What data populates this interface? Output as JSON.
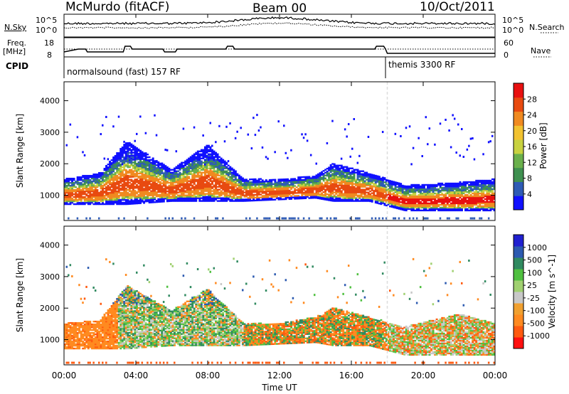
{
  "header": {
    "station": "McMurdo (fitACF)",
    "beam": "Beam 00",
    "date": "10/Oct/2011"
  },
  "top_panels": {
    "nsky_label": "N.Sky",
    "nsky_ticks": [
      "10^5",
      "10^0"
    ],
    "nsearch_label": "N.Search",
    "nsearch_ticks": [
      "10^5",
      "10^0"
    ],
    "freq_label_line1": "Freq.",
    "freq_label_line2": "[MHz]",
    "freq_ticks": [
      "18",
      "8"
    ],
    "nave_label": "Nave",
    "nave_ticks": [
      "60",
      "0"
    ],
    "cpid_label": "CPID",
    "cpid_modes": [
      {
        "name": "normalsound (fast) 157 RF",
        "start": 0
      },
      {
        "name": "themis 3300 RF",
        "start": 18
      }
    ]
  },
  "colors": {
    "power_scale": [
      "#1010ff",
      "#2e5bb5",
      "#3f9050",
      "#6ab04c",
      "#c8d240",
      "#f2c230",
      "#f08a20",
      "#e84a10",
      "#e81010"
    ],
    "velocity_scale": [
      "#ff1010",
      "#ff5a10",
      "#ff8a20",
      "#f0a030",
      "#c8c8c8",
      "#a0d070",
      "#50c040",
      "#308a60",
      "#2c5ab0",
      "#2020d0"
    ]
  },
  "chart_data": [
    {
      "type": "heatmap",
      "name": "power",
      "ylabel": "Slant Range [km]",
      "xlabel": "Time UT",
      "xlim": [
        0,
        24
      ],
      "ylim": [
        200,
        4600
      ],
      "xticks": [
        "00:00",
        "04:00",
        "08:00",
        "12:00",
        "16:00",
        "20:00",
        "00:00"
      ],
      "yticks": [
        1000,
        2000,
        3000,
        4000
      ],
      "colorbar_label": "Power [dB]",
      "colorbar_ticks": [
        4,
        8,
        12,
        16,
        20,
        24,
        28
      ],
      "colorbar_range": [
        0,
        32
      ],
      "echo_band": [
        {
          "t": 0,
          "lo": 700,
          "hi": 1500
        },
        {
          "t": 2,
          "lo": 700,
          "hi": 1700
        },
        {
          "t": 3.5,
          "lo": 700,
          "hi": 2700
        },
        {
          "t": 6,
          "lo": 800,
          "hi": 1800
        },
        {
          "t": 8,
          "lo": 800,
          "hi": 2600
        },
        {
          "t": 10,
          "lo": 800,
          "hi": 1500
        },
        {
          "t": 12,
          "lo": 850,
          "hi": 1500
        },
        {
          "t": 14,
          "lo": 900,
          "hi": 1600
        },
        {
          "t": 15,
          "lo": 800,
          "hi": 2000
        },
        {
          "t": 17,
          "lo": 800,
          "hi": 1700
        },
        {
          "t": 19,
          "lo": 500,
          "hi": 1300
        },
        {
          "t": 22,
          "lo": 500,
          "hi": 1400
        },
        {
          "t": 24,
          "lo": 500,
          "hi": 1500
        }
      ]
    },
    {
      "type": "heatmap",
      "name": "velocity",
      "ylabel": "Slant Range [km]",
      "xlabel": "Time UT",
      "xlim": [
        0,
        24
      ],
      "ylim": [
        200,
        4600
      ],
      "xticks": [
        "00:00",
        "04:00",
        "08:00",
        "12:00",
        "16:00",
        "20:00",
        "00:00"
      ],
      "yticks": [
        1000,
        2000,
        3000,
        4000
      ],
      "colorbar_label": "Velocity [m s^-1]",
      "colorbar_ticks": [
        "-1000",
        "-500",
        "-100",
        "-25",
        "25",
        "100",
        "500",
        "1000"
      ],
      "echo_band": [
        {
          "t": 0,
          "lo": 700,
          "hi": 1500
        },
        {
          "t": 2,
          "lo": 700,
          "hi": 1600
        },
        {
          "t": 3.5,
          "lo": 700,
          "hi": 2700
        },
        {
          "t": 6,
          "lo": 800,
          "hi": 1900
        },
        {
          "t": 8,
          "lo": 800,
          "hi": 2600
        },
        {
          "t": 10,
          "lo": 800,
          "hi": 1500
        },
        {
          "t": 12,
          "lo": 850,
          "hi": 1500
        },
        {
          "t": 14,
          "lo": 900,
          "hi": 1700
        },
        {
          "t": 15,
          "lo": 800,
          "hi": 2000
        },
        {
          "t": 17,
          "lo": 800,
          "hi": 1700
        },
        {
          "t": 19,
          "lo": 500,
          "hi": 1400
        },
        {
          "t": 22,
          "lo": 500,
          "hi": 1800
        },
        {
          "t": 24,
          "lo": 500,
          "hi": 1500
        }
      ]
    }
  ]
}
